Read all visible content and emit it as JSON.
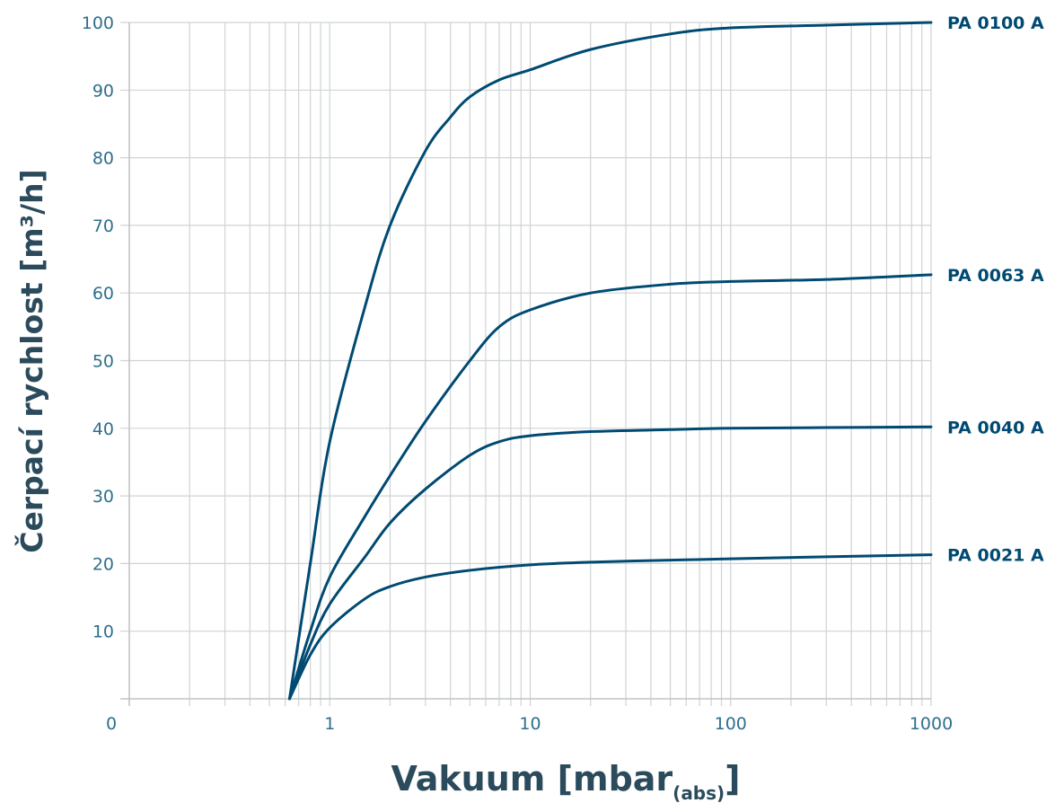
{
  "chart_data": {
    "type": "line",
    "title": "",
    "xlabel": "Vakuum [mbar",
    "xlabel_sub": "(abs)",
    "xlabel_end": "]",
    "ylabel": "Čerpací rychlost [m³/h]",
    "x_scale": "log",
    "xlim": [
      0.1,
      1000
    ],
    "ylim": [
      0,
      100
    ],
    "x_ticks": [
      {
        "value": 0.1,
        "label": "0"
      },
      {
        "value": 1,
        "label": "1"
      },
      {
        "value": 10,
        "label": "10"
      },
      {
        "value": 100,
        "label": "100"
      },
      {
        "value": 1000,
        "label": "1000"
      }
    ],
    "y_ticks": [
      10,
      20,
      30,
      40,
      50,
      60,
      70,
      80,
      90,
      100
    ],
    "grid": true,
    "line_color": "#004a72",
    "grid_color": "#cfd3d5",
    "series": [
      {
        "name": "PA 0100 A",
        "points": [
          [
            0.63,
            0
          ],
          [
            0.8,
            20
          ],
          [
            1,
            38
          ],
          [
            1.5,
            58
          ],
          [
            2,
            70
          ],
          [
            3,
            81
          ],
          [
            4,
            86
          ],
          [
            5,
            89
          ],
          [
            7,
            91.5
          ],
          [
            10,
            93
          ],
          [
            20,
            96
          ],
          [
            50,
            98.3
          ],
          [
            100,
            99.2
          ],
          [
            300,
            99.6
          ],
          [
            1000,
            100
          ]
        ]
      },
      {
        "name": "PA 0063 A",
        "points": [
          [
            0.63,
            0
          ],
          [
            0.8,
            10
          ],
          [
            1,
            18
          ],
          [
            1.5,
            27
          ],
          [
            2,
            33
          ],
          [
            3,
            41
          ],
          [
            5,
            50
          ],
          [
            7,
            55
          ],
          [
            10,
            57.5
          ],
          [
            20,
            60
          ],
          [
            50,
            61.3
          ],
          [
            100,
            61.7
          ],
          [
            300,
            62
          ],
          [
            1000,
            62.7
          ]
        ]
      },
      {
        "name": "PA 0040 A",
        "points": [
          [
            0.63,
            0
          ],
          [
            0.8,
            8
          ],
          [
            1,
            14
          ],
          [
            1.5,
            21
          ],
          [
            2,
            26
          ],
          [
            3,
            31
          ],
          [
            5,
            36
          ],
          [
            7,
            38
          ],
          [
            10,
            38.9
          ],
          [
            20,
            39.5
          ],
          [
            50,
            39.8
          ],
          [
            100,
            40
          ],
          [
            300,
            40.1
          ],
          [
            1000,
            40.2
          ]
        ]
      },
      {
        "name": "PA 0021 A",
        "points": [
          [
            0.63,
            0
          ],
          [
            0.8,
            6.5
          ],
          [
            1,
            10.5
          ],
          [
            1.5,
            14.8
          ],
          [
            2,
            16.6
          ],
          [
            3,
            18
          ],
          [
            5,
            19
          ],
          [
            10,
            19.8
          ],
          [
            20,
            20.2
          ],
          [
            50,
            20.5
          ],
          [
            100,
            20.7
          ],
          [
            300,
            21
          ],
          [
            1000,
            21.3
          ]
        ]
      }
    ]
  }
}
